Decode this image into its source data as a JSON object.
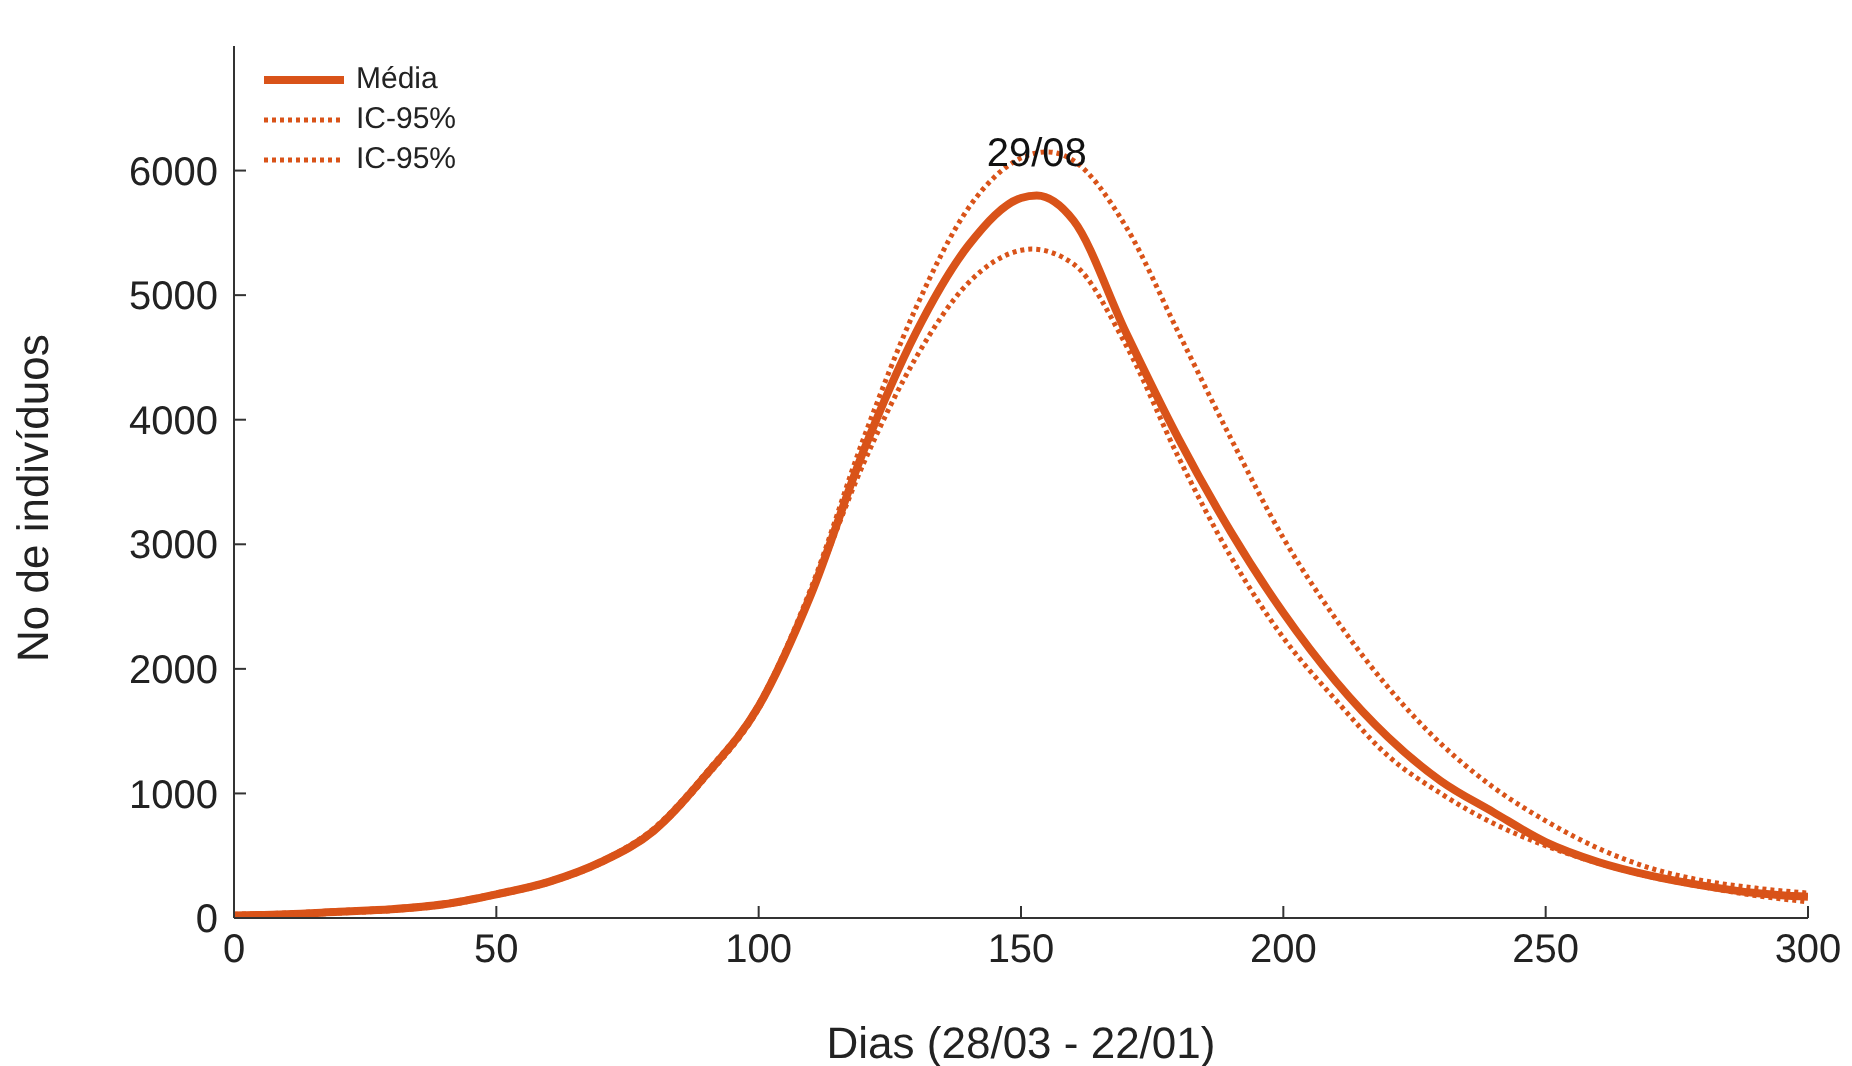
{
  "chart_data": {
    "type": "line",
    "xlabel": "Dias (28/03 - 22/01)",
    "ylabel": "No de indivíduos",
    "xlim": [
      0,
      300
    ],
    "xticks": [
      0,
      50,
      100,
      150,
      200,
      250,
      300
    ],
    "ylim": [
      0,
      7000
    ],
    "yticks": [
      0,
      1000,
      2000,
      3000,
      4000,
      5000,
      6000
    ],
    "grid": false,
    "legend": "top left",
    "marker": "none",
    "annotations": [
      {
        "text": "29/08",
        "x": 153,
        "y": 6150
      }
    ],
    "series": [
      {
        "name": "Média",
        "color": "#d95319",
        "line_style": "solid",
        "x": [
          0,
          10,
          20,
          30,
          40,
          50,
          60,
          70,
          80,
          90,
          100,
          110,
          120,
          130,
          140,
          150,
          153,
          160,
          170,
          180,
          190,
          200,
          210,
          220,
          230,
          240,
          250,
          260,
          270,
          280,
          290,
          300
        ],
        "values": [
          20,
          30,
          50,
          70,
          110,
          190,
          290,
          450,
          700,
          1150,
          1700,
          2600,
          3750,
          4700,
          5400,
          5780,
          5800,
          5600,
          4700,
          3850,
          3100,
          2450,
          1900,
          1450,
          1100,
          850,
          610,
          450,
          340,
          260,
          200,
          170
        ]
      },
      {
        "name": "IC-95%",
        "color": "#d95319",
        "line_style": "dotted",
        "x": [
          0,
          10,
          20,
          30,
          40,
          50,
          60,
          70,
          80,
          90,
          100,
          110,
          120,
          130,
          140,
          150,
          155,
          160,
          170,
          180,
          190,
          200,
          210,
          220,
          230,
          240,
          250,
          260,
          270,
          280,
          290,
          300
        ],
        "values": [
          30,
          40,
          60,
          80,
          120,
          200,
          300,
          460,
          720,
          1170,
          1720,
          2650,
          3850,
          4900,
          5700,
          6100,
          6150,
          6080,
          5550,
          4700,
          3850,
          3050,
          2400,
          1850,
          1400,
          1050,
          780,
          560,
          400,
          300,
          240,
          200
        ]
      },
      {
        "name": "IC-95%",
        "color": "#d95319",
        "line_style": "dotted",
        "x": [
          0,
          10,
          20,
          30,
          40,
          50,
          60,
          70,
          80,
          90,
          100,
          110,
          120,
          130,
          140,
          150,
          152,
          160,
          170,
          180,
          190,
          200,
          210,
          220,
          230,
          240,
          250,
          260,
          270,
          280,
          290,
          300
        ],
        "values": [
          10,
          20,
          40,
          60,
          100,
          180,
          280,
          440,
          690,
          1130,
          1680,
          2600,
          3650,
          4500,
          5100,
          5360,
          5370,
          5250,
          4600,
          3700,
          2900,
          2250,
          1750,
          1300,
          1000,
          760,
          580,
          440,
          330,
          250,
          180,
          130
        ]
      }
    ]
  }
}
